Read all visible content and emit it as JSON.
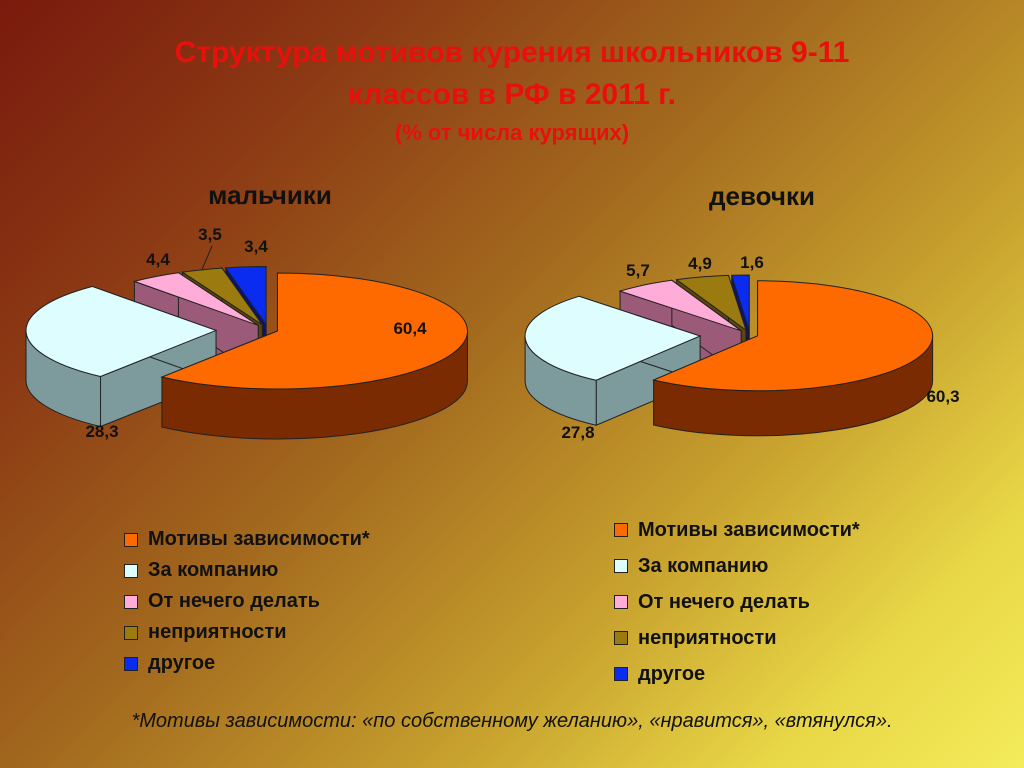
{
  "title": {
    "line1": "Структура мотивов курения школьников 9-11",
    "line2": "классов   в РФ в 2011 г.",
    "line3": "(% от числа курящих)"
  },
  "colors": {
    "title": "#e8100c",
    "categories": [
      "#ff6a00",
      "#ddfdff",
      "#ffadd8",
      "#9b7a0f",
      "#0a2cf0"
    ],
    "sides": [
      "#7a2b02",
      "#7d9a9d",
      "#9a5a78",
      "#5d4608",
      "#0a1470"
    ]
  },
  "chart_data": [
    {
      "type": "pie",
      "title": "мальчики",
      "categories": [
        "Мотивы зависимости*",
        "За компанию",
        "От нечего делать",
        "неприятности",
        "другое"
      ],
      "values": [
        60.4,
        28.3,
        4.4,
        3.5,
        3.4
      ],
      "data_labels": [
        "60,4",
        "28,3",
        "4,4",
        "3,5",
        "3,4"
      ],
      "legend_position": "bottom"
    },
    {
      "type": "pie",
      "title": "девочки",
      "categories": [
        "Мотивы зависимости*",
        "За компанию",
        "От нечего делать",
        "неприятности",
        "другое"
      ],
      "values": [
        60.3,
        27.8,
        5.7,
        4.9,
        1.6
      ],
      "data_labels": [
        "60,3",
        "27,8",
        "5,7",
        "4,9",
        "1,6"
      ],
      "legend_position": "bottom"
    }
  ],
  "footnote": "*Мотивы зависимости: «по собственному желанию», «нравится», «втянулся»."
}
